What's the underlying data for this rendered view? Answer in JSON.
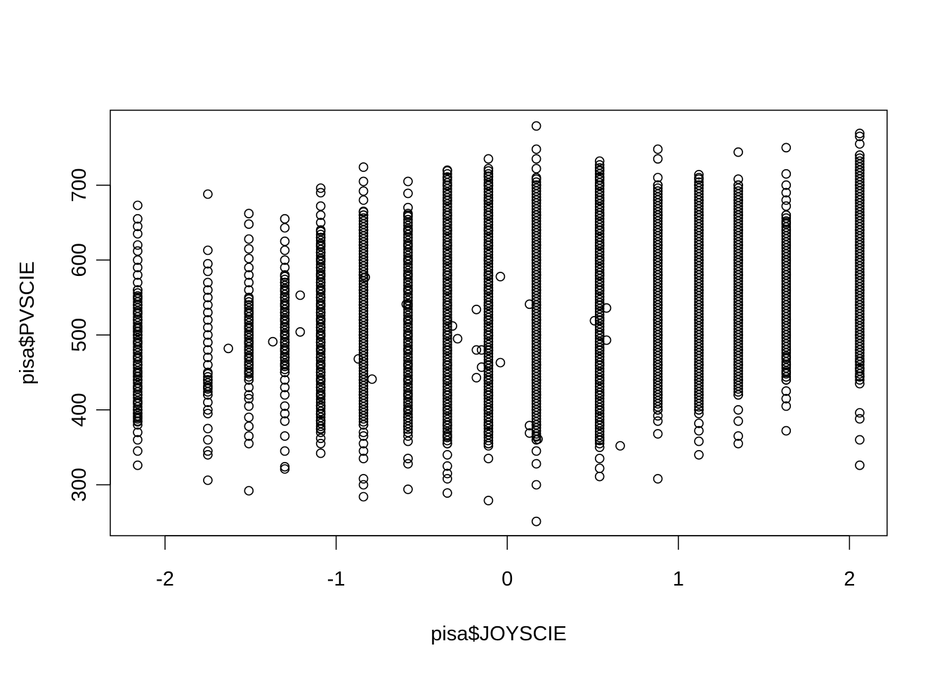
{
  "chart_data": {
    "type": "scatter",
    "title": "",
    "xlabel": "pisa$JOYSCIE",
    "ylabel": "pisa$PVSCIE",
    "xlim": [
      -2.32,
      2.22
    ],
    "ylim": [
      232,
      800
    ],
    "x_ticks": [
      -2,
      -1,
      0,
      1,
      2
    ],
    "x_tick_labels": [
      "-2",
      "-1",
      "0",
      "1",
      "2"
    ],
    "y_ticks": [
      300,
      400,
      500,
      600,
      700
    ],
    "y_tick_labels": [
      "300",
      "400",
      "500",
      "600",
      "700"
    ],
    "grid": false,
    "legend": "none",
    "marker": "open-circle",
    "colors": {
      "points": "#000000",
      "frame": "#000000",
      "background": "#ffffff"
    },
    "series": [
      {
        "x_levels": [
          -2.16,
          -1.75,
          -1.51,
          -1.3,
          -1.09,
          -0.84,
          -0.58,
          -0.35,
          -0.11,
          0.17,
          0.54,
          0.88,
          1.12,
          1.35,
          1.63,
          2.06
        ],
        "groups": [
          {
            "x": -2.16,
            "dense_min": 380,
            "dense_max": 560,
            "points": [
              326,
              345,
              360,
              370,
              385,
              390,
              395,
              400,
              410,
              420,
              430,
              440,
              445,
              450,
              460,
              470,
              480,
              490,
              500,
              505,
              510,
              520,
              530,
              540,
              550,
              560,
              570,
              580,
              590,
              600,
              612,
              620,
              635,
              645,
              655,
              673
            ]
          },
          {
            "x": -1.75,
            "dense_min": 420,
            "dense_max": 450,
            "points": [
              306,
              340,
              345,
              360,
              375,
              395,
              400,
              410,
              420,
              430,
              440,
              450,
              460,
              470,
              480,
              490,
              500,
              510,
              520,
              530,
              540,
              550,
              560,
              570,
              585,
              595,
              613,
              688
            ]
          },
          {
            "x": -1.51,
            "dense_min": 440,
            "dense_max": 550,
            "points": [
              292,
              355,
              365,
              378,
              390,
              405,
              415,
              420,
              430,
              440,
              450,
              460,
              470,
              480,
              490,
              500,
              510,
              520,
              530,
              540,
              550,
              560,
              570,
              580,
              590,
              602,
              615,
              628,
              648,
              662
            ]
          },
          {
            "x": -1.3,
            "dense_min": 450,
            "dense_max": 580,
            "points": [
              321,
              324,
              345,
              365,
              385,
              395,
              405,
              420,
              430,
              440,
              450,
              460,
              470,
              480,
              490,
              500,
              510,
              520,
              530,
              540,
              550,
              560,
              570,
              580,
              590,
              600,
              613,
              625,
              643,
              655
            ]
          },
          {
            "x": -1.09,
            "dense_min": 370,
            "dense_max": 640,
            "points": [
              342,
              355,
              362,
              375,
              385,
              395,
              405,
              420,
              430,
              440,
              450,
              460,
              470,
              480,
              490,
              500,
              510,
              520,
              530,
              540,
              550,
              560,
              570,
              580,
              590,
              600,
              610,
              620,
              630,
              640,
              650,
              660,
              672,
              690,
              696
            ]
          },
          {
            "x": -0.84,
            "dense_min": 380,
            "dense_max": 665,
            "points": [
              284,
              300,
              308,
              335,
              345,
              355,
              365,
              370,
              380,
              400,
              420,
              440,
              460,
              480,
              500,
              520,
              540,
              560,
              580,
              600,
              620,
              640,
              660,
              665,
              680,
              692,
              705,
              724
            ]
          },
          {
            "x": -0.58,
            "dense_min": 370,
            "dense_max": 665,
            "points": [
              294,
              328,
              335,
              358,
              365,
              378,
              390,
              400,
              420,
              440,
              460,
              480,
              500,
              520,
              540,
              560,
              580,
              600,
              620,
              640,
              660,
              670,
              689,
              705
            ]
          },
          {
            "x": -0.35,
            "dense_min": 355,
            "dense_max": 720,
            "points": [
              289,
              308,
              315,
              325,
              340,
              355,
              365,
              380,
              400,
              420,
              440,
              460,
              480,
              500,
              520,
              540,
              560,
              580,
              600,
              620,
              640,
              660,
              680,
              700,
              710,
              720
            ]
          },
          {
            "x": -0.11,
            "dense_min": 355,
            "dense_max": 720,
            "points": [
              279,
              335,
              352,
              355,
              370,
              380,
              400,
              420,
              440,
              460,
              480,
              500,
              520,
              540,
              560,
              580,
              600,
              620,
              640,
              660,
              680,
              700,
              712,
              722,
              735
            ]
          },
          {
            "x": 0.17,
            "dense_min": 360,
            "dense_max": 710,
            "points": [
              251,
              300,
              328,
              345,
              360,
              365,
              380,
              400,
              420,
              440,
              460,
              480,
              500,
              520,
              540,
              560,
              580,
              600,
              620,
              640,
              660,
              680,
              700,
              710,
              722,
              735,
              748,
              779
            ]
          },
          {
            "x": 0.54,
            "dense_min": 355,
            "dense_max": 730,
            "points": [
              311,
              322,
              335,
              350,
              360,
              380,
              400,
              420,
              440,
              460,
              480,
              500,
              520,
              540,
              560,
              580,
              600,
              620,
              640,
              660,
              680,
              700,
              710,
              720,
              732
            ]
          },
          {
            "x": 0.88,
            "dense_min": 400,
            "dense_max": 700,
            "points": [
              308,
              368,
              385,
              392,
              400,
              420,
              440,
              460,
              480,
              500,
              520,
              540,
              560,
              580,
              600,
              620,
              640,
              660,
              680,
              700,
              710,
              735,
              748
            ]
          },
          {
            "x": 1.12,
            "dense_min": 400,
            "dense_max": 710,
            "points": [
              340,
              358,
              372,
              382,
              395,
              400,
              420,
              440,
              460,
              480,
              500,
              520,
              540,
              560,
              580,
              600,
              620,
              640,
              660,
              680,
              700,
              710,
              714
            ]
          },
          {
            "x": 1.35,
            "dense_min": 420,
            "dense_max": 700,
            "points": [
              355,
              365,
              385,
              400,
              420,
              440,
              460,
              480,
              500,
              520,
              540,
              560,
              580,
              600,
              620,
              640,
              660,
              680,
              700,
              708,
              744
            ]
          },
          {
            "x": 1.63,
            "dense_min": 440,
            "dense_max": 660,
            "points": [
              372,
              405,
              415,
              425,
              440,
              450,
              460,
              470,
              480,
              500,
              520,
              540,
              560,
              580,
              600,
              620,
              640,
              650,
              660,
              672,
              680,
              690,
              700,
              715,
              750
            ]
          },
          {
            "x": 2.06,
            "dense_min": 440,
            "dense_max": 740,
            "points": [
              326,
              360,
              388,
              396,
              435,
              445,
              455,
              465,
              480,
              500,
              520,
              540,
              560,
              580,
              600,
              620,
              640,
              660,
              680,
              700,
              720,
              740,
              755,
              765,
              769
            ]
          }
        ],
        "stray_points": [
          {
            "x": -1.63,
            "y": 482
          },
          {
            "x": -1.37,
            "y": 491
          },
          {
            "x": -1.21,
            "y": 553
          },
          {
            "x": -1.21,
            "y": 504
          },
          {
            "x": -0.87,
            "y": 468
          },
          {
            "x": -0.83,
            "y": 577
          },
          {
            "x": -0.79,
            "y": 441
          },
          {
            "x": -0.59,
            "y": 541
          },
          {
            "x": -0.32,
            "y": 512
          },
          {
            "x": -0.29,
            "y": 495
          },
          {
            "x": -0.18,
            "y": 534
          },
          {
            "x": -0.18,
            "y": 480
          },
          {
            "x": -0.18,
            "y": 443
          },
          {
            "x": -0.15,
            "y": 457
          },
          {
            "x": -0.15,
            "y": 480
          },
          {
            "x": -0.04,
            "y": 578
          },
          {
            "x": -0.04,
            "y": 463
          },
          {
            "x": 0.13,
            "y": 541
          },
          {
            "x": 0.13,
            "y": 379
          },
          {
            "x": 0.13,
            "y": 369
          },
          {
            "x": 0.18,
            "y": 361
          },
          {
            "x": 0.51,
            "y": 519
          },
          {
            "x": 0.58,
            "y": 536
          },
          {
            "x": 0.58,
            "y": 493
          },
          {
            "x": 0.66,
            "y": 352
          }
        ]
      }
    ]
  }
}
